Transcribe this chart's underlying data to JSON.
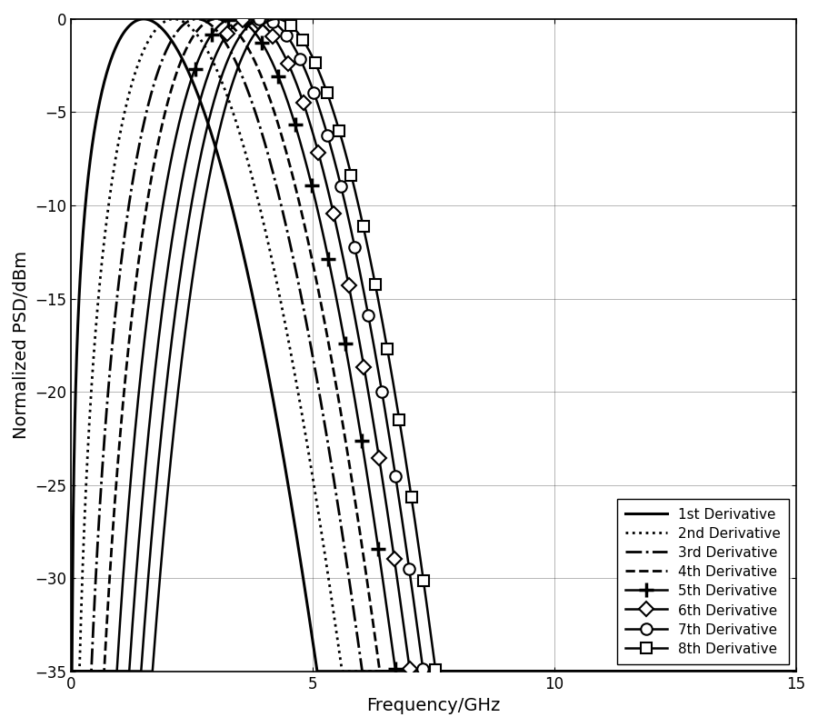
{
  "xlabel": "Frequency/GHz",
  "ylabel": "Normalized PSD/dBm",
  "xlim": [
    0,
    15
  ],
  "ylim": [
    -35,
    0
  ],
  "xticks": [
    0,
    5,
    10,
    15
  ],
  "yticks": [
    0,
    -5,
    -10,
    -15,
    -20,
    -25,
    -30,
    -35
  ],
  "sigma_ns": 0.106,
  "lines": [
    {
      "n": 1,
      "ls": "-",
      "lw": 2.2,
      "marker": null,
      "ms": 9,
      "mfc": "black",
      "label": "1st Derivative"
    },
    {
      "n": 2,
      "ls": ":",
      "lw": 2.0,
      "marker": null,
      "ms": 9,
      "mfc": "black",
      "label": "2nd Derivative"
    },
    {
      "n": 3,
      "ls": "-.",
      "lw": 2.0,
      "marker": null,
      "ms": 9,
      "mfc": "black",
      "label": "3rd Derivative"
    },
    {
      "n": 4,
      "ls": "--",
      "lw": 2.0,
      "marker": null,
      "ms": 9,
      "mfc": "black",
      "label": "4th Derivative"
    },
    {
      "n": 5,
      "ls": "-",
      "lw": 1.8,
      "marker": "+",
      "ms": 10,
      "mfc": "black",
      "label": "5th Derivative"
    },
    {
      "n": 6,
      "ls": "-",
      "lw": 1.8,
      "marker": "D",
      "ms": 8,
      "mfc": "white",
      "label": "6th Derivative"
    },
    {
      "n": 7,
      "ls": "-",
      "lw": 1.8,
      "marker": "o",
      "ms": 9,
      "mfc": "white",
      "label": "7th Derivative"
    },
    {
      "n": 8,
      "ls": "-",
      "lw": 1.8,
      "marker": "s",
      "ms": 9,
      "mfc": "white",
      "label": "8th Derivative"
    }
  ],
  "figsize": [
    9.0,
    8.0
  ],
  "dpi": 100
}
